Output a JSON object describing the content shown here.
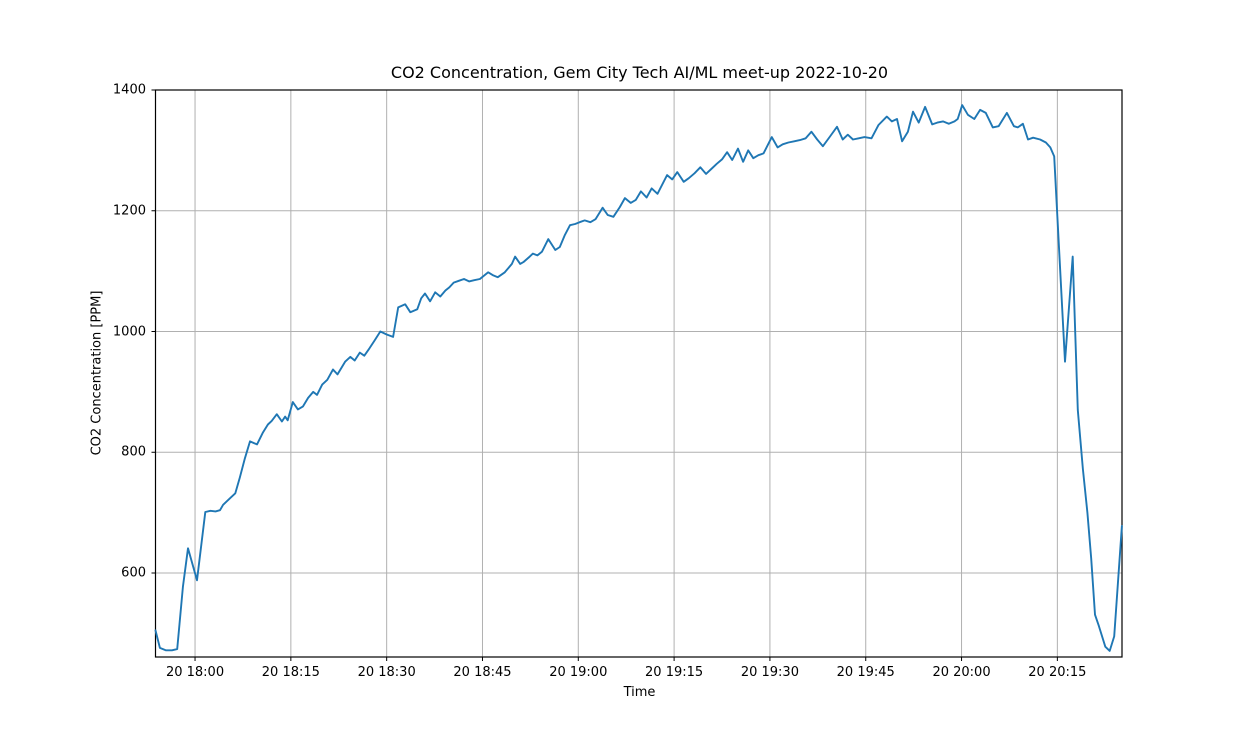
{
  "figure": {
    "title": "CO2 Concentration, Gem City Tech AI/ML meet-up 2022-10-20",
    "xlabel": "Time",
    "ylabel": "CO2 Concentration [PPM]"
  },
  "chart_data": {
    "type": "line",
    "title": "CO2 Concentration, Gem City Tech AI/ML meet-up 2022-10-20",
    "xlabel": "Time",
    "ylabel": "CO2 Concentration [PPM]",
    "series_name": "CO2 concentration",
    "x_unit": "minutes relative to 2022-10-20 18:00",
    "y_unit": "PPM",
    "xlim": [
      -6.19,
      145.12
    ],
    "ylim": [
      460.9,
      1400
    ],
    "grid": true,
    "legend": false,
    "line_color": "#1f77b4",
    "grid_color": "#b0b0b0",
    "spine_color": "#000000",
    "x_ticks": [
      {
        "t": 0,
        "label": "20 18:00"
      },
      {
        "t": 15,
        "label": "20 18:15"
      },
      {
        "t": 30,
        "label": "20 18:30"
      },
      {
        "t": 45,
        "label": "20 18:45"
      },
      {
        "t": 60,
        "label": "20 19:00"
      },
      {
        "t": 75,
        "label": "20 19:15"
      },
      {
        "t": 90,
        "label": "20 19:30"
      },
      {
        "t": 105,
        "label": "20 19:45"
      },
      {
        "t": 120,
        "label": "20 20:00"
      },
      {
        "t": 135,
        "label": "20 20:15"
      }
    ],
    "y_ticks": [
      {
        "v": 600,
        "label": "600"
      },
      {
        "v": 800,
        "label": "800"
      },
      {
        "v": 1000,
        "label": "1000"
      },
      {
        "v": 1200,
        "label": "1200"
      },
      {
        "v": 1400,
        "label": "1400"
      }
    ],
    "points": [
      [
        -6.19,
        505
      ],
      [
        -5.5,
        476
      ],
      [
        -4.6,
        472
      ],
      [
        -3.6,
        472
      ],
      [
        -2.8,
        474
      ],
      [
        -1.9,
        577
      ],
      [
        -1.1,
        641
      ],
      [
        0.3,
        588
      ],
      [
        1.6,
        701
      ],
      [
        2.4,
        703
      ],
      [
        3.2,
        702
      ],
      [
        3.9,
        704
      ],
      [
        4.4,
        713
      ],
      [
        5.5,
        724
      ],
      [
        6.3,
        732
      ],
      [
        7.0,
        758
      ],
      [
        7.8,
        790
      ],
      [
        8.6,
        818
      ],
      [
        9.7,
        813
      ],
      [
        10.6,
        832
      ],
      [
        11.4,
        846
      ],
      [
        12.0,
        852
      ],
      [
        12.8,
        863
      ],
      [
        13.6,
        851
      ],
      [
        14.1,
        859
      ],
      [
        14.5,
        853
      ],
      [
        15.3,
        883
      ],
      [
        16.1,
        871
      ],
      [
        16.9,
        876
      ],
      [
        17.7,
        890
      ],
      [
        18.5,
        900
      ],
      [
        19.1,
        895
      ],
      [
        19.9,
        912
      ],
      [
        20.7,
        920
      ],
      [
        21.6,
        937
      ],
      [
        22.3,
        929
      ],
      [
        23.5,
        950
      ],
      [
        24.3,
        958
      ],
      [
        25.0,
        952
      ],
      [
        25.8,
        965
      ],
      [
        26.5,
        960
      ],
      [
        27.3,
        972
      ],
      [
        28.1,
        985
      ],
      [
        29.0,
        1000
      ],
      [
        30.0,
        995
      ],
      [
        31.0,
        991
      ],
      [
        31.8,
        1040
      ],
      [
        32.9,
        1045
      ],
      [
        33.7,
        1032
      ],
      [
        34.8,
        1037
      ],
      [
        35.4,
        1055
      ],
      [
        36.0,
        1063
      ],
      [
        36.8,
        1050
      ],
      [
        37.6,
        1065
      ],
      [
        38.4,
        1058
      ],
      [
        39.2,
        1068
      ],
      [
        39.8,
        1073
      ],
      [
        40.5,
        1081
      ],
      [
        41.3,
        1084
      ],
      [
        42.1,
        1087
      ],
      [
        42.9,
        1083
      ],
      [
        43.7,
        1085
      ],
      [
        44.6,
        1087
      ],
      [
        45.9,
        1098
      ],
      [
        46.7,
        1093
      ],
      [
        47.4,
        1090
      ],
      [
        48.5,
        1098
      ],
      [
        49.6,
        1112
      ],
      [
        50.1,
        1124
      ],
      [
        50.9,
        1112
      ],
      [
        51.4,
        1115
      ],
      [
        52.4,
        1124
      ],
      [
        52.9,
        1129
      ],
      [
        53.6,
        1126
      ],
      [
        54.3,
        1132
      ],
      [
        55.3,
        1153
      ],
      [
        56.4,
        1135
      ],
      [
        57.1,
        1140
      ],
      [
        57.9,
        1160
      ],
      [
        58.7,
        1176
      ],
      [
        59.5,
        1178
      ],
      [
        60.2,
        1181
      ],
      [
        61.0,
        1184
      ],
      [
        61.9,
        1181
      ],
      [
        62.7,
        1186
      ],
      [
        63.8,
        1205
      ],
      [
        64.6,
        1193
      ],
      [
        65.5,
        1190
      ],
      [
        66.5,
        1206
      ],
      [
        67.3,
        1221
      ],
      [
        68.2,
        1213
      ],
      [
        69.0,
        1218
      ],
      [
        69.8,
        1232
      ],
      [
        70.7,
        1222
      ],
      [
        71.5,
        1237
      ],
      [
        72.4,
        1228
      ],
      [
        73.9,
        1259
      ],
      [
        74.7,
        1252
      ],
      [
        75.5,
        1264
      ],
      [
        76.5,
        1248
      ],
      [
        77.3,
        1254
      ],
      [
        78.2,
        1262
      ],
      [
        79.1,
        1272
      ],
      [
        80.0,
        1261
      ],
      [
        80.9,
        1270
      ],
      [
        81.7,
        1278
      ],
      [
        82.5,
        1285
      ],
      [
        83.3,
        1297
      ],
      [
        84.1,
        1284
      ],
      [
        85.0,
        1303
      ],
      [
        85.8,
        1281
      ],
      [
        86.6,
        1300
      ],
      [
        87.4,
        1287
      ],
      [
        88.2,
        1292
      ],
      [
        89.0,
        1295
      ],
      [
        90.3,
        1322
      ],
      [
        91.2,
        1305
      ],
      [
        92.0,
        1310
      ],
      [
        92.9,
        1313
      ],
      [
        93.8,
        1315
      ],
      [
        94.7,
        1317
      ],
      [
        95.6,
        1320
      ],
      [
        96.5,
        1331
      ],
      [
        97.4,
        1318
      ],
      [
        98.3,
        1307
      ],
      [
        99.4,
        1323
      ],
      [
        100.5,
        1339
      ],
      [
        101.4,
        1318
      ],
      [
        102.2,
        1326
      ],
      [
        103.0,
        1318
      ],
      [
        103.9,
        1320
      ],
      [
        104.8,
        1322
      ],
      [
        105.9,
        1320
      ],
      [
        107.0,
        1342
      ],
      [
        108.3,
        1356
      ],
      [
        109.1,
        1348
      ],
      [
        109.9,
        1352
      ],
      [
        110.7,
        1315
      ],
      [
        111.6,
        1331
      ],
      [
        112.4,
        1364
      ],
      [
        113.3,
        1346
      ],
      [
        114.3,
        1372
      ],
      [
        115.4,
        1343
      ],
      [
        116.2,
        1346
      ],
      [
        117.1,
        1348
      ],
      [
        118.0,
        1344
      ],
      [
        118.9,
        1348
      ],
      [
        119.4,
        1352
      ],
      [
        120.1,
        1375
      ],
      [
        121.0,
        1359
      ],
      [
        122.0,
        1352
      ],
      [
        122.9,
        1367
      ],
      [
        123.8,
        1362
      ],
      [
        124.9,
        1338
      ],
      [
        125.8,
        1340
      ],
      [
        127.1,
        1362
      ],
      [
        128.2,
        1340
      ],
      [
        128.8,
        1338
      ],
      [
        129.6,
        1344
      ],
      [
        130.4,
        1318
      ],
      [
        131.2,
        1321
      ],
      [
        132.3,
        1318
      ],
      [
        133.2,
        1313
      ],
      [
        133.9,
        1305
      ],
      [
        134.5,
        1290
      ],
      [
        136.2,
        950
      ],
      [
        137.4,
        1124
      ],
      [
        138.2,
        870
      ],
      [
        139.0,
        772
      ],
      [
        139.7,
        700
      ],
      [
        140.3,
        624
      ],
      [
        140.9,
        531
      ],
      [
        141.5,
        512
      ],
      [
        142.5,
        478
      ],
      [
        143.2,
        471
      ],
      [
        143.9,
        495
      ],
      [
        145.1,
        678
      ]
    ]
  }
}
